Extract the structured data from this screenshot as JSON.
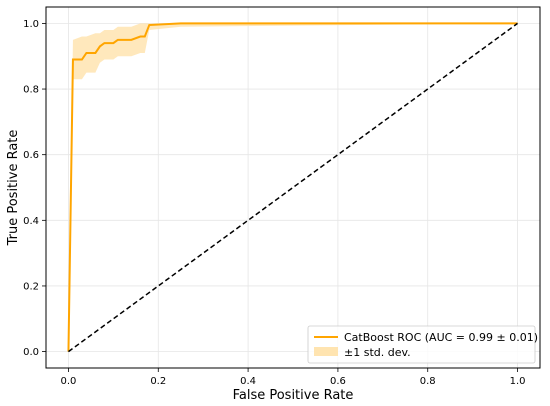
{
  "chart_data": {
    "type": "line",
    "title": "",
    "xlabel": "False Positive Rate",
    "ylabel": "True Positive Rate",
    "xlim": [
      -0.05,
      1.05
    ],
    "ylim": [
      -0.05,
      1.05
    ],
    "xticks": [
      0.0,
      0.2,
      0.4,
      0.6,
      0.8,
      1.0
    ],
    "yticks": [
      0.0,
      0.2,
      0.4,
      0.6,
      0.8,
      1.0
    ],
    "tick_labels_x": [
      "0.0",
      "0.2",
      "0.4",
      "0.6",
      "0.8",
      "1.0"
    ],
    "tick_labels_y": [
      "0.0",
      "0.2",
      "0.4",
      "0.6",
      "0.8",
      "1.0"
    ],
    "grid": true,
    "legend_position": "bottom-right",
    "series": [
      {
        "name": "CatBoost ROC (AUC = 0.99 ± 0.01)",
        "color": "#FFA500",
        "style": "solid",
        "x": [
          0.0,
          0.01,
          0.03,
          0.04,
          0.06,
          0.07,
          0.08,
          0.1,
          0.11,
          0.14,
          0.16,
          0.17,
          0.18,
          0.25,
          1.0
        ],
        "y": [
          0.0,
          0.89,
          0.89,
          0.91,
          0.91,
          0.93,
          0.94,
          0.94,
          0.95,
          0.95,
          0.96,
          0.96,
          0.995,
          1.0,
          1.0
        ]
      },
      {
        "name": "",
        "color": "#000000",
        "style": "dashed",
        "x": [
          0.0,
          1.0
        ],
        "y": [
          0.0,
          1.0
        ]
      }
    ],
    "band": {
      "name": "±1 std. dev.",
      "color": "#FFE4B0",
      "x": [
        0.0,
        0.01,
        0.03,
        0.04,
        0.06,
        0.07,
        0.08,
        0.1,
        0.11,
        0.14,
        0.16,
        0.17,
        0.18,
        0.25,
        1.0
      ],
      "upper": [
        0.0,
        0.95,
        0.96,
        0.96,
        0.97,
        0.97,
        0.98,
        0.98,
        0.99,
        0.99,
        1.0,
        1.0,
        1.0,
        1.0,
        1.0
      ],
      "lower": [
        0.0,
        0.83,
        0.83,
        0.85,
        0.85,
        0.88,
        0.89,
        0.89,
        0.9,
        0.9,
        0.91,
        0.91,
        0.98,
        0.99,
        1.0
      ]
    }
  }
}
